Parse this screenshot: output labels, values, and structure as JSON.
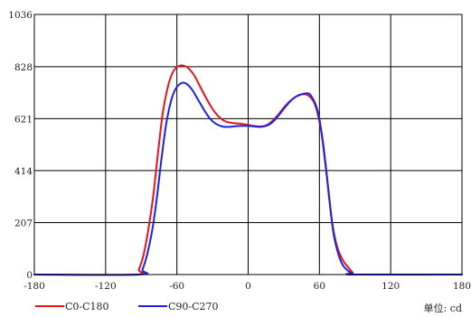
{
  "chart_data": {
    "type": "line",
    "xlim": [
      -180,
      180
    ],
    "ylim": [
      0,
      1036
    ],
    "x_ticks": [
      -180,
      -120,
      -60,
      0,
      60,
      120,
      180
    ],
    "y_ticks": [
      0,
      207,
      414,
      621,
      828,
      1036
    ],
    "grid": true,
    "legend_position": "bottom-left",
    "unit_label": "单位: cd",
    "series": [
      {
        "name": "C0-C180",
        "color": "#e8141c",
        "points": [
          [
            -180,
            0
          ],
          [
            -95,
            0
          ],
          [
            -92,
            20
          ],
          [
            -88,
            80
          ],
          [
            -84,
            180
          ],
          [
            -80,
            310
          ],
          [
            -76,
            480
          ],
          [
            -72,
            640
          ],
          [
            -68,
            740
          ],
          [
            -64,
            800
          ],
          [
            -60,
            826
          ],
          [
            -55,
            833
          ],
          [
            -50,
            820
          ],
          [
            -45,
            790
          ],
          [
            -40,
            745
          ],
          [
            -35,
            700
          ],
          [
            -30,
            660
          ],
          [
            -25,
            630
          ],
          [
            -20,
            612
          ],
          [
            -15,
            605
          ],
          [
            -10,
            602
          ],
          [
            -5,
            600
          ],
          [
            0,
            596
          ],
          [
            5,
            592
          ],
          [
            10,
            590
          ],
          [
            15,
            594
          ],
          [
            20,
            610
          ],
          [
            25,
            635
          ],
          [
            30,
            665
          ],
          [
            35,
            690
          ],
          [
            40,
            708
          ],
          [
            45,
            718
          ],
          [
            50,
            715
          ],
          [
            55,
            690
          ],
          [
            58,
            650
          ],
          [
            62,
            560
          ],
          [
            65,
            450
          ],
          [
            68,
            320
          ],
          [
            71,
            200
          ],
          [
            75,
            110
          ],
          [
            80,
            55
          ],
          [
            85,
            25
          ],
          [
            88,
            8
          ],
          [
            90,
            0
          ],
          [
            180,
            0
          ]
        ]
      },
      {
        "name": "C90-C270",
        "color": "#1c22dd",
        "points": [
          [
            -180,
            0
          ],
          [
            -92,
            0
          ],
          [
            -89,
            20
          ],
          [
            -85,
            80
          ],
          [
            -81,
            170
          ],
          [
            -77,
            300
          ],
          [
            -73,
            460
          ],
          [
            -69,
            600
          ],
          [
            -65,
            690
          ],
          [
            -61,
            740
          ],
          [
            -56,
            763
          ],
          [
            -52,
            760
          ],
          [
            -47,
            735
          ],
          [
            -42,
            695
          ],
          [
            -37,
            655
          ],
          [
            -32,
            620
          ],
          [
            -27,
            600
          ],
          [
            -22,
            590
          ],
          [
            -17,
            588
          ],
          [
            -12,
            590
          ],
          [
            -5,
            592
          ],
          [
            0,
            592
          ],
          [
            5,
            590
          ],
          [
            10,
            588
          ],
          [
            15,
            592
          ],
          [
            20,
            605
          ],
          [
            25,
            630
          ],
          [
            30,
            660
          ],
          [
            35,
            688
          ],
          [
            40,
            708
          ],
          [
            45,
            718
          ],
          [
            50,
            722
          ],
          [
            53,
            712
          ],
          [
            57,
            675
          ],
          [
            60,
            620
          ],
          [
            63,
            520
          ],
          [
            66,
            400
          ],
          [
            69,
            270
          ],
          [
            72,
            160
          ],
          [
            76,
            80
          ],
          [
            80,
            35
          ],
          [
            85,
            12
          ],
          [
            88,
            3
          ],
          [
            90,
            0
          ],
          [
            180,
            0
          ]
        ]
      }
    ]
  }
}
